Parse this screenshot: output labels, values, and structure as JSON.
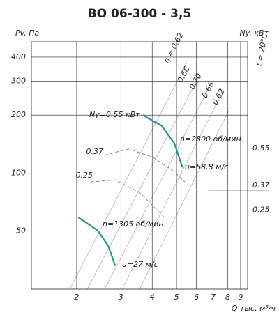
{
  "chart_data": {
    "type": "line",
    "title": "ВО 06-300 - 3,5",
    "y_label": "Pv, Па",
    "y2_label": "Ny, кВт",
    "x_label": "Q тыс. м³/ч",
    "x_scale": "log",
    "y_scale": "log",
    "grid": true,
    "xlim": [
      1.32,
      9.6
    ],
    "xticks": [
      2,
      3,
      4,
      5,
      6,
      7,
      8,
      9
    ],
    "ylim": [
      25,
      480
    ],
    "yticks": [
      50,
      100,
      200,
      300,
      400
    ],
    "y2lim": [
      -0.11,
      1.09
    ],
    "y2ticks": [
      0.25,
      0.37,
      0.55
    ],
    "series": [
      {
        "name": "n=2800 об/мин.",
        "color": "#1a9a96",
        "axis": "y",
        "x": [
          3.67,
          4.36,
          4.9,
          5.28
        ],
        "values": [
          200,
          176,
          143,
          107
        ]
      },
      {
        "name": "n=1305 об/мин.",
        "color": "#1a9a96",
        "axis": "y",
        "x": [
          2.03,
          2.42,
          2.67,
          2.85
        ],
        "values": [
          59,
          50.5,
          42,
          33
        ]
      },
      {
        "name": "0.37",
        "color": "#888888",
        "axis": "y2",
        "dashed": true,
        "x": [
          2.58,
          3.23,
          4.03,
          4.9,
          5.4
        ],
        "values": [
          0.54,
          0.57,
          0.53,
          0.46,
          0.41
        ]
      },
      {
        "name": "0.25",
        "color": "#888888",
        "axis": "y2",
        "dashed": true,
        "x": [
          2.27,
          2.84,
          3.56,
          4.46
        ],
        "values": [
          0.41,
          0.42,
          0.36,
          0.24
        ]
      }
    ],
    "annotations": [
      "Ny=0.55 кВт",
      "u=58,8 м/с",
      "u=27 м/с",
      "t = 20°C",
      "η = 0.62",
      "0.66",
      "0.70",
      "0.66",
      "0.62"
    ]
  }
}
